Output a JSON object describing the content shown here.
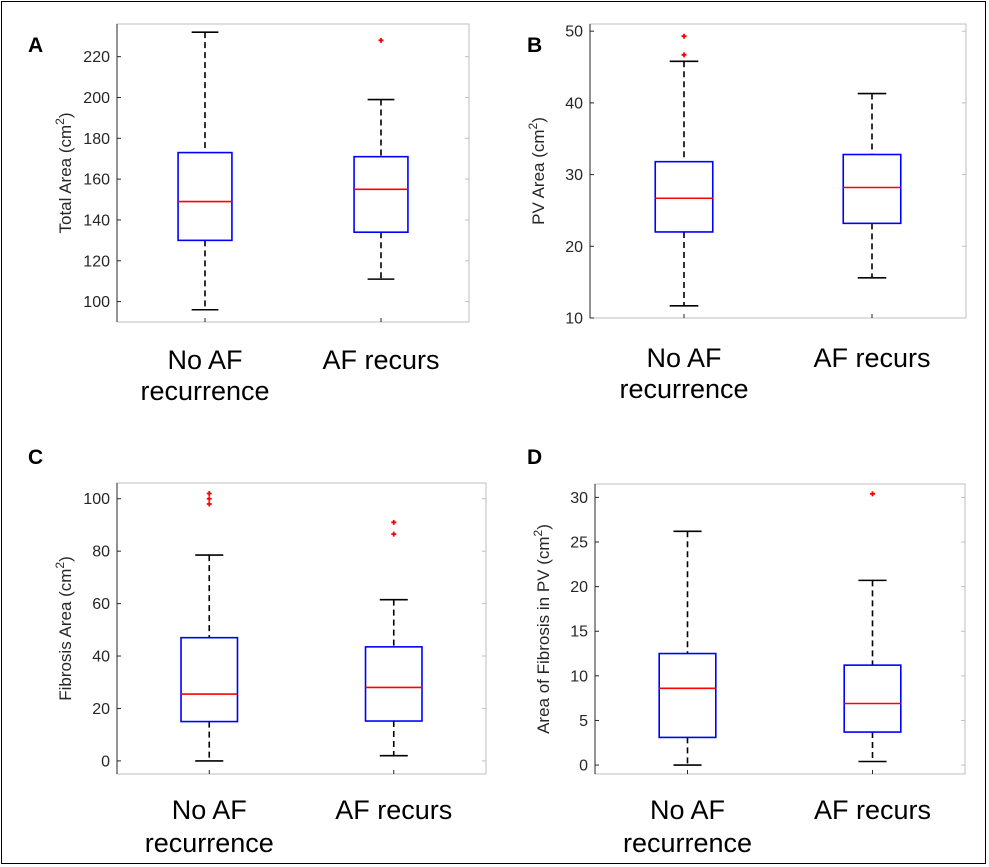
{
  "chart_data": [
    {
      "type": "box",
      "panel_label": "A",
      "ylabel": "Total Area (cm",
      "ylabel_sup": "2",
      "ylabel_tail": ")",
      "categories": [
        {
          "label_lines": [
            "No AF",
            "recurrence"
          ],
          "min": 96,
          "q1": 130,
          "median": 149,
          "q3": 173,
          "max": 232,
          "outliers": []
        },
        {
          "label_lines": [
            "AF recurs"
          ],
          "min": 111,
          "q1": 134,
          "median": 155,
          "q3": 171,
          "max": 199,
          "outliers": [
            228
          ]
        }
      ],
      "ylim": [
        90,
        236
      ],
      "yticks": [
        100,
        120,
        140,
        160,
        180,
        200,
        220
      ],
      "grid": false
    },
    {
      "type": "box",
      "panel_label": "B",
      "ylabel": "PV Area (cm",
      "ylabel_sup": "2",
      "ylabel_tail": ")",
      "categories": [
        {
          "label_lines": [
            "No AF",
            "recurrence"
          ],
          "min": 11.7,
          "q1": 22,
          "median": 26.7,
          "q3": 31.8,
          "max": 45.8,
          "outliers": [
            46.7,
            49.3
          ]
        },
        {
          "label_lines": [
            "AF recurs"
          ],
          "min": 15.6,
          "q1": 23.2,
          "median": 28.2,
          "q3": 32.8,
          "max": 41.3,
          "outliers": []
        }
      ],
      "ylim": [
        10,
        51
      ],
      "yticks": [
        10,
        20,
        30,
        40,
        50
      ],
      "grid": false
    },
    {
      "type": "box",
      "panel_label": "C",
      "ylabel": "Fibrosis Area (cm",
      "ylabel_sup": "2",
      "ylabel_tail": ")",
      "categories": [
        {
          "label_lines": [
            "No AF",
            "recurrence"
          ],
          "min": 0,
          "q1": 15,
          "median": 25.5,
          "q3": 47,
          "max": 78.5,
          "outliers": [
            98,
            100,
            102
          ]
        },
        {
          "label_lines": [
            "AF recurs"
          ],
          "min": 2,
          "q1": 15.2,
          "median": 28,
          "q3": 43.5,
          "max": 61.5,
          "outliers": [
            86.5,
            91
          ]
        }
      ],
      "ylim": [
        -5,
        106
      ],
      "yticks": [
        0,
        20,
        40,
        60,
        80,
        100
      ],
      "grid": false
    },
    {
      "type": "box",
      "panel_label": "D",
      "ylabel": "Area of Fibrosis in PV (cm",
      "ylabel_sup": "2",
      "ylabel_tail": ")",
      "categories": [
        {
          "label_lines": [
            "No AF",
            "recurrence"
          ],
          "min": 0,
          "q1": 3.1,
          "median": 8.6,
          "q3": 12.5,
          "max": 26.2,
          "outliers": []
        },
        {
          "label_lines": [
            "AF recurs"
          ],
          "min": 0.4,
          "q1": 3.7,
          "median": 6.9,
          "q3": 11.2,
          "max": 20.7,
          "outliers": [
            30.4
          ]
        }
      ],
      "ylim": [
        -1,
        31.5
      ],
      "yticks": [
        0,
        5,
        10,
        15,
        20,
        25,
        30
      ],
      "grid": false
    }
  ],
  "colors": {
    "box": "#0000ff",
    "median": "#ff0000",
    "outlier": "#ff0000",
    "whisker": "#000000",
    "axes": "#262626",
    "axes_box": "#bfbfbf"
  }
}
